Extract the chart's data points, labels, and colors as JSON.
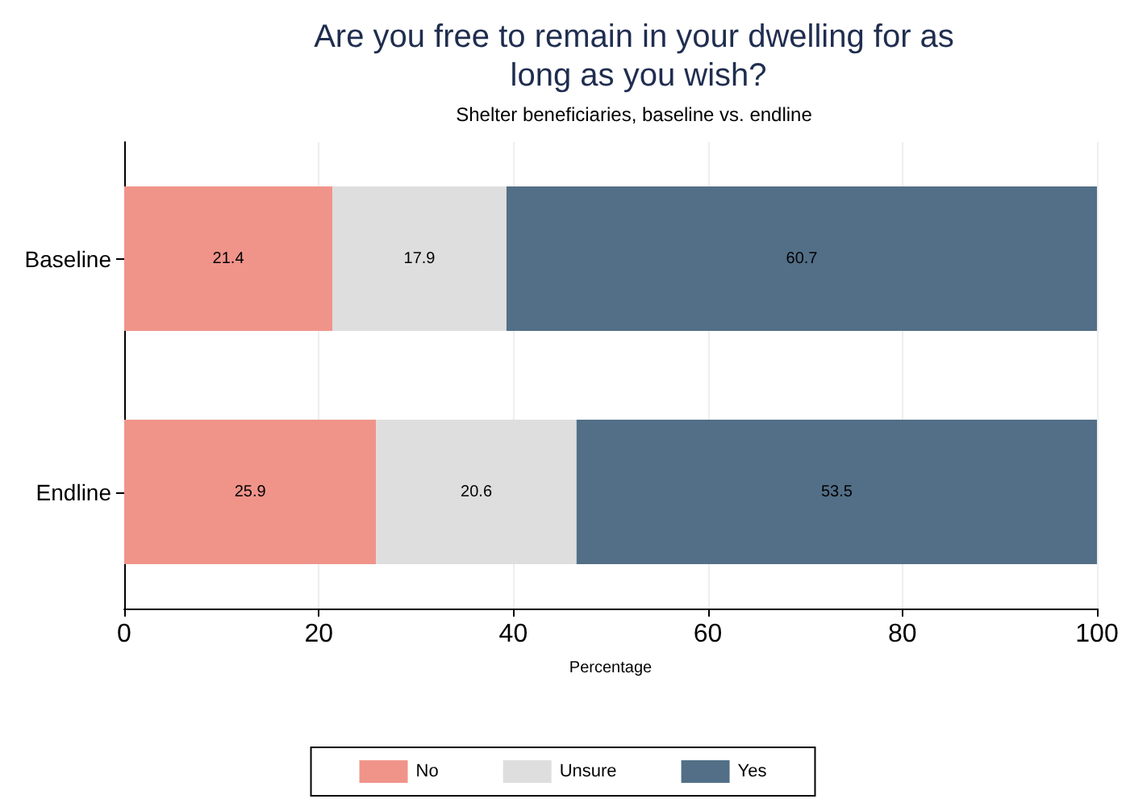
{
  "chart_data": {
    "type": "bar",
    "title": "Are you free to remain in your dwelling for as long as you wish?",
    "subtitle": "Shelter beneficiaries, baseline vs. endline",
    "xlabel": "Percentage",
    "orientation": "horizontal",
    "stacked": true,
    "categories": [
      "Baseline",
      "Endline"
    ],
    "series": [
      {
        "name": "No",
        "color": "#f0948a",
        "values": [
          21.4,
          25.9
        ]
      },
      {
        "name": "Unsure",
        "color": "#dedede",
        "values": [
          17.9,
          20.6
        ]
      },
      {
        "name": "Yes",
        "color": "#526f87",
        "values": [
          60.7,
          53.5
        ]
      }
    ],
    "xlim": [
      0,
      100
    ],
    "xticks": [
      0,
      20,
      40,
      60,
      80,
      100
    ],
    "grid": "x",
    "legend": "bottom",
    "data_labels": true
  }
}
